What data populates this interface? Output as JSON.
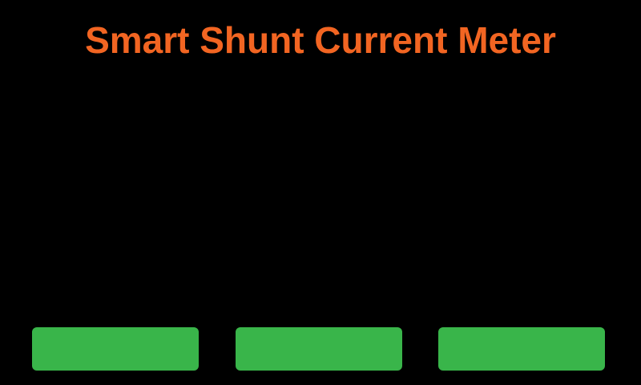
{
  "title": "Smart Shunt Current Meter",
  "buttons": {
    "left_label": "",
    "center_label": "",
    "right_label": ""
  },
  "colors": {
    "background": "#000000",
    "title": "#F26522",
    "button": "#39B54A"
  }
}
